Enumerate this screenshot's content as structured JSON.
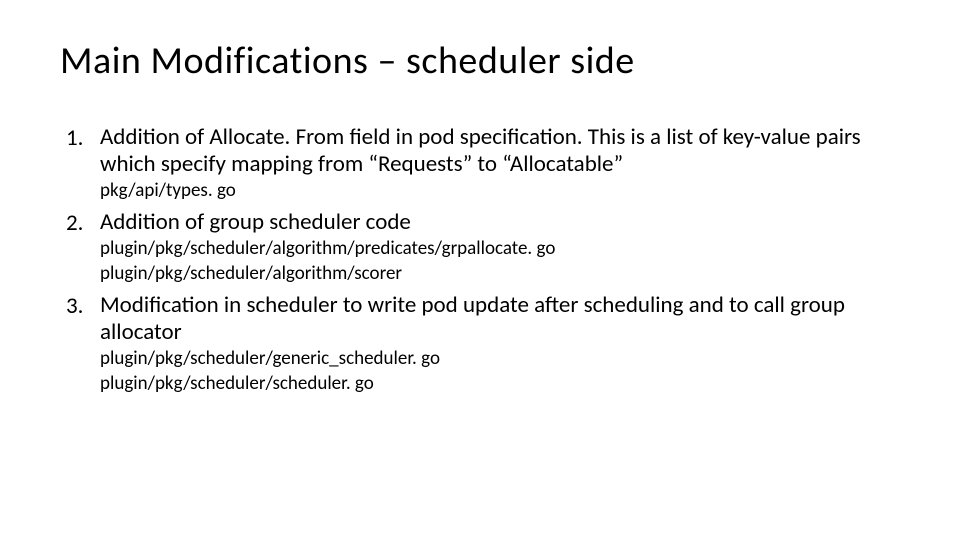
{
  "colors": {
    "background": "#ffffff",
    "text": "#000000"
  },
  "typography": {
    "title_fontsize": 38,
    "title_weight": 400,
    "body_fontsize": 23,
    "sub_fontsize": 19,
    "font_family": "Calibri"
  },
  "title": "Main Modifications – scheduler side",
  "items": [
    {
      "text": "Addition of Allocate. From field in pod specification.  This is a list of key-value pairs which specify mapping from “Requests” to “Allocatable”",
      "subs": [
        "pkg/api/types. go"
      ]
    },
    {
      "text": "Addition of group scheduler code",
      "subs": [
        "plugin/pkg/scheduler/algorithm/predicates/grpallocate. go",
        "plugin/pkg/scheduler/algorithm/scorer"
      ]
    },
    {
      "text": "Modification in scheduler to write pod update after scheduling and to call group allocator",
      "subs": [
        "plugin/pkg/scheduler/generic_scheduler. go",
        "plugin/pkg/scheduler/scheduler. go"
      ]
    }
  ]
}
